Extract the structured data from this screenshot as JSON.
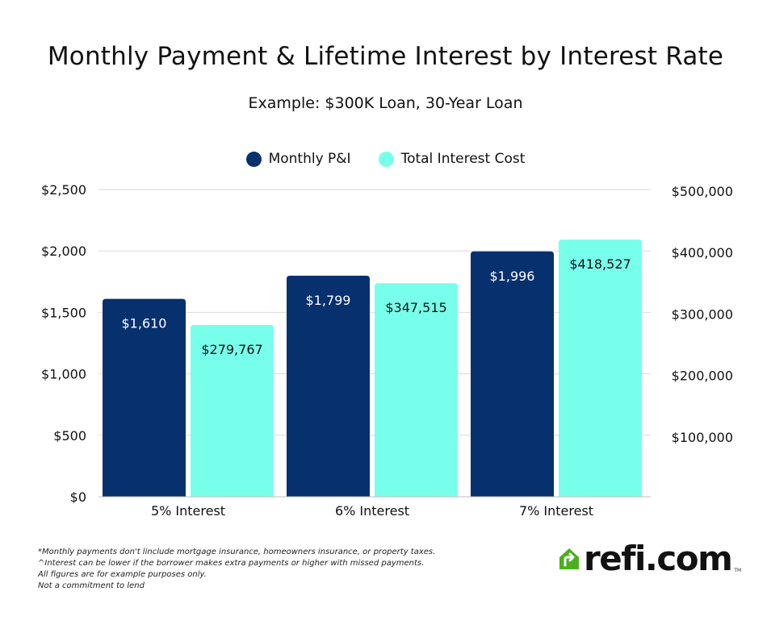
{
  "chart_data": {
    "type": "bar",
    "title": "Monthly Payment & Lifetime Interest by Interest Rate",
    "subtitle": "Example: $300K Loan, 30-Year Loan",
    "categories": [
      "5% Interest",
      "6% Interest",
      "7% Interest"
    ],
    "series": [
      {
        "name": "Monthly P&I",
        "axis": "left",
        "color": "#07306f",
        "values": [
          1610,
          1799,
          1996
        ],
        "labels": [
          "$1,610",
          "$1,799",
          "$1,996"
        ]
      },
      {
        "name": "Total Interest Cost",
        "axis": "right",
        "color": "#77ffeb",
        "values": [
          279767,
          347515,
          418527
        ],
        "labels": [
          "$279,767",
          "$347,515",
          "$418,527"
        ]
      }
    ],
    "y_left": {
      "ylim": [
        0,
        2500
      ],
      "ticks": [
        0,
        500,
        1000,
        1500,
        2000,
        2500
      ],
      "tick_labels": [
        "$0",
        "$500",
        "$1,000",
        "$1,500",
        "$2,000",
        "$2,500"
      ]
    },
    "y_right": {
      "ylim": [
        0,
        500000
      ],
      "ticks": [
        100000,
        200000,
        300000,
        400000,
        500000
      ],
      "tick_labels": [
        "$100,000",
        "$200,000",
        "$300,000",
        "$400,000",
        "$500,000"
      ]
    },
    "grid": true,
    "legend_position": "top-center"
  },
  "notes": [
    "*Monthly payments don't linclude mortgage insurance, homeowners insurance, or property taxes.",
    "^Interest can be lower if the borrower makes extra payments or higher with missed payments.",
    "All figures are for example purposes only.",
    "Not a commitment to lend"
  ],
  "brand": {
    "name": "refi.com",
    "tm": "TM",
    "icon": "house-arrow-icon",
    "color": "#4caf1f"
  }
}
